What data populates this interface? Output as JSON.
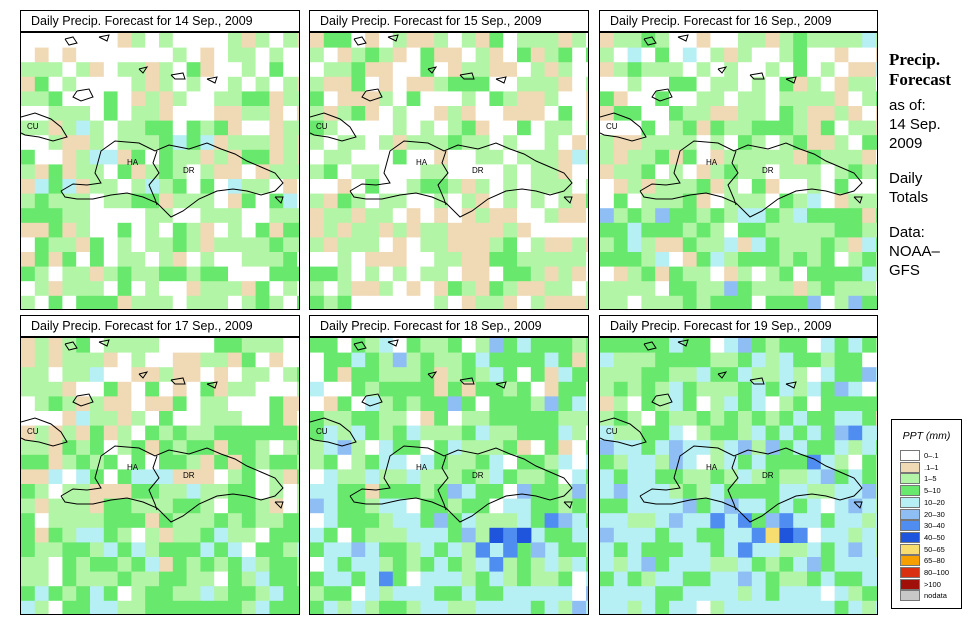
{
  "panels": [
    {
      "title": "Daily Precip. Forecast for  14 Sep., 2009",
      "scenario": 0
    },
    {
      "title": "Daily Precip. Forecast for  15 Sep., 2009",
      "scenario": 1
    },
    {
      "title": "Daily Precip. Forecast for  16 Sep., 2009",
      "scenario": 2
    },
    {
      "title": "Daily Precip. Forecast for  17 Sep., 2009",
      "scenario": 3
    },
    {
      "title": "Daily Precip. Forecast for  18 Sep., 2009",
      "scenario": 4
    },
    {
      "title": "Daily Precip. Forecast for  19 Sep., 2009",
      "scenario": 5
    }
  ],
  "country_labels": {
    "cu": "CU",
    "ha": "HA",
    "dr": "DR"
  },
  "side": {
    "heading1": "Precip.",
    "heading2": "Forecast",
    "asof": "as of:",
    "date1": "14 Sep.",
    "date2": "2009",
    "totals1": "Daily",
    "totals2": "Totals",
    "data1": "Data:",
    "data2": "NOAA–",
    "data3": "GFS"
  },
  "legend": {
    "title": "PPT (mm)",
    "items": [
      {
        "label": "0–.1",
        "color": "#ffffff"
      },
      {
        "label": ".1–1",
        "color": "#f0d9b5"
      },
      {
        "label": "1–5",
        "color": "#b2f5a6"
      },
      {
        "label": "5–10",
        "color": "#69e86e"
      },
      {
        "label": "10–20",
        "color": "#b6eff4"
      },
      {
        "label": "20–30",
        "color": "#8fbef5"
      },
      {
        "label": "30–40",
        "color": "#4f8ef0"
      },
      {
        "label": "40–50",
        "color": "#1f55dc"
      },
      {
        "label": "50–65",
        "color": "#f7dd70"
      },
      {
        "label": "65–80",
        "color": "#f5a000"
      },
      {
        "label": "80–100",
        "color": "#d83010"
      },
      {
        "label": ">100",
        "color": "#a01008"
      },
      {
        "label": "nodata",
        "color": "#c8c8c8"
      }
    ]
  }
}
